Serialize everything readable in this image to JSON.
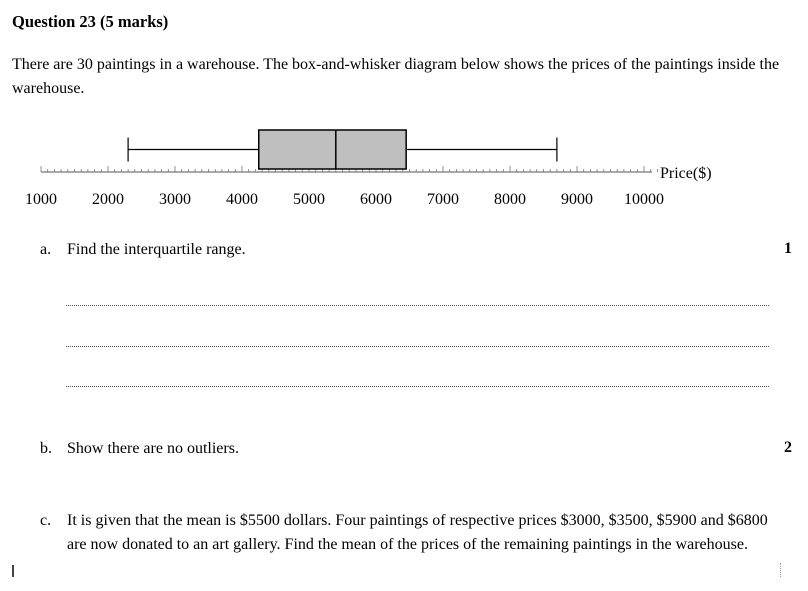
{
  "question": {
    "title": "Question 23 (5 marks)",
    "stem": "There are 30 paintings in a warehouse. The box-and-whisker diagram below shows the prices of the paintings inside the warehouse."
  },
  "chart_data": {
    "type": "box",
    "xlabel": "Price($)",
    "xlim": [
      1000,
      10000
    ],
    "tick_labels": [
      "1000",
      "2000",
      "3000",
      "4000",
      "5000",
      "6000",
      "7000",
      "8000",
      "9000",
      "10000"
    ],
    "box": {
      "min": 2300,
      "q1": 4250,
      "median": 5400,
      "q3": 6450,
      "max": 8700
    },
    "box_fill": "#bfbfbf"
  },
  "parts": [
    {
      "label": "a.",
      "text": "Find the interquartile range.",
      "marks": "1"
    },
    {
      "label": "b.",
      "text": "Show there are no outliers.",
      "marks": "2"
    },
    {
      "label": "c.",
      "text": "It is given that the mean is $5500 dollars. Four paintings of respective prices $3000, $3500, $5900 and $6800 are now donated to an art gallery. Find the mean of the prices of the remaining paintings in the warehouse.",
      "marks": ""
    }
  ]
}
